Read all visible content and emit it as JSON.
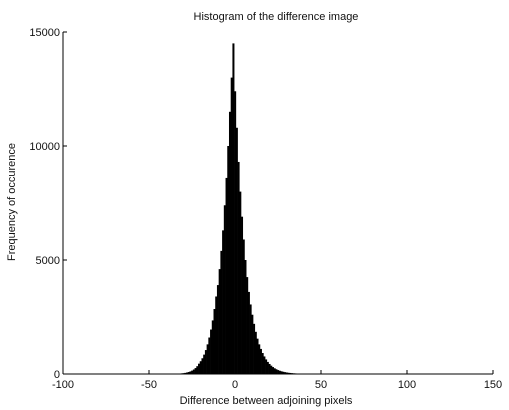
{
  "chart_data": {
    "type": "bar",
    "title": "Histogram of the difference image",
    "xlabel": "Difference between adjoining pixels",
    "ylabel": "Frequency of occurence",
    "xlim": [
      -100,
      150
    ],
    "ylim": [
      0,
      15000
    ],
    "xticks": [
      "-100",
      "-50",
      "0",
      "50",
      "100",
      "150"
    ],
    "yticks": [
      "0",
      "5000",
      "10000",
      "15000"
    ],
    "grid": false,
    "bin_centers": [
      -40,
      -39,
      -38,
      -37,
      -36,
      -35,
      -34,
      -33,
      -32,
      -31,
      -30,
      -29,
      -28,
      -27,
      -26,
      -25,
      -24,
      -23,
      -22,
      -21,
      -20,
      -19,
      -18,
      -17,
      -16,
      -15,
      -14,
      -13,
      -12,
      -11,
      -10,
      -9,
      -8,
      -7,
      -6,
      -5,
      -4,
      -3,
      -2,
      -1,
      0,
      1,
      2,
      3,
      4,
      5,
      6,
      7,
      8,
      9,
      10,
      11,
      12,
      13,
      14,
      15,
      16,
      17,
      18,
      19,
      20,
      21,
      22,
      23,
      24,
      25,
      26,
      27,
      28,
      29,
      30,
      31,
      32,
      33,
      34,
      35,
      36,
      37,
      38,
      39,
      40
    ],
    "values": [
      2,
      3,
      4,
      5,
      7,
      9,
      12,
      16,
      21,
      28,
      37,
      49,
      65,
      86,
      113,
      149,
      197,
      260,
      343,
      453,
      560,
      690,
      850,
      1050,
      1300,
      1600,
      1950,
      2350,
      2850,
      3400,
      3900,
      4600,
      5400,
      6300,
      7400,
      8600,
      10000,
      11500,
      13000,
      14500,
      12400,
      10800,
      9300,
      8000,
      6900,
      5900,
      5000,
      4250,
      3600,
      3050,
      2600,
      2200,
      1850,
      1550,
      1300,
      1100,
      920,
      770,
      640,
      530,
      440,
      365,
      303,
      251,
      208,
      172,
      142,
      118,
      98,
      81,
      67,
      55,
      46,
      38,
      31,
      26,
      21,
      17,
      14,
      12,
      10
    ]
  }
}
